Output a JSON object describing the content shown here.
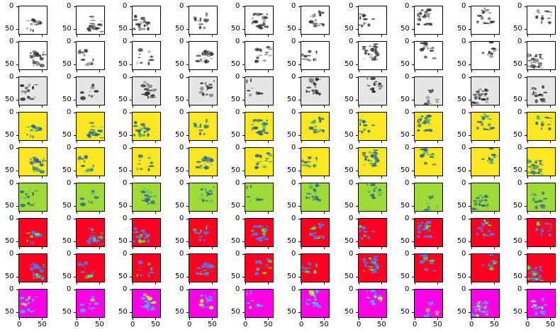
{
  "chart_data": {
    "type": "heatmap",
    "rows": 9,
    "cols": 10,
    "ytick_labels": [
      "0",
      "50"
    ],
    "xtick_labels": [
      "0",
      "50"
    ],
    "xlim": [
      0,
      64
    ],
    "ylim": [
      64,
      0
    ],
    "row_colormaps": [
      {
        "background": "#ffffff",
        "blob": "#3a3a3a",
        "accent": "#9a9a9a"
      },
      {
        "background": "#ffffff",
        "blob": "#3a3a3a",
        "accent": "#9a9a9a"
      },
      {
        "background": "#e6e6e6",
        "blob": "#2a2a2a",
        "accent": "#8a8a8a"
      },
      {
        "background": "#fde725",
        "blob": "#31688e",
        "accent": "#35b779"
      },
      {
        "background": "#fde725",
        "blob": "#31688e",
        "accent": "#35b779"
      },
      {
        "background": "#a0da39",
        "blob": "#31688e",
        "accent": "#6ece58"
      },
      {
        "background": "#ff0022",
        "blob": "#4b7bff",
        "accent": "#40ff40"
      },
      {
        "background": "#ff0022",
        "blob": "#4b7bff",
        "accent": "#40ff40"
      },
      {
        "background": "#ff00e6",
        "blob": "#3cb7ff",
        "accent": "#b4ff3c"
      }
    ]
  }
}
